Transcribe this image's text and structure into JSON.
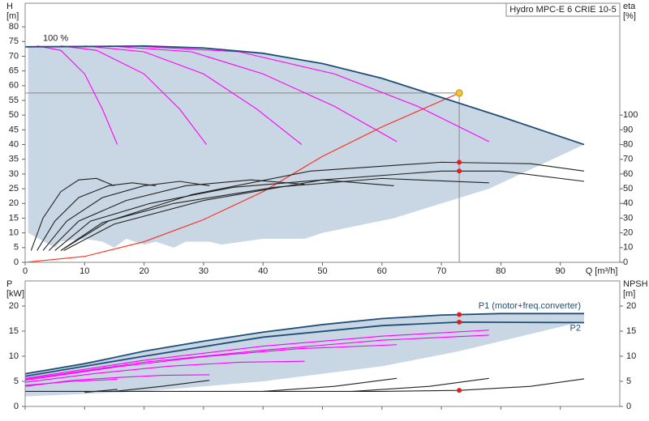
{
  "chart_data": [
    {
      "type": "line",
      "title": "Hydro MPC-E 6 CRIE 10-5",
      "xlabel": "Q [m³/h]",
      "ylabel": [
        "H",
        "[m]"
      ],
      "y2label": [
        "eta",
        "[%]"
      ],
      "xlim": [
        0,
        100
      ],
      "xticks": [
        0,
        10,
        20,
        30,
        40,
        50,
        60,
        70,
        80,
        90
      ],
      "ylim": [
        0,
        88
      ],
      "yticks": [
        0,
        5,
        10,
        15,
        20,
        25,
        30,
        35,
        40,
        45,
        50,
        55,
        60,
        65,
        70,
        75,
        80
      ],
      "y2lim": [
        0,
        176
      ],
      "y2ticks": [
        0,
        10,
        20,
        30,
        40,
        50,
        60,
        70,
        80,
        90,
        100
      ],
      "area": {
        "color": "#c9d6e3",
        "x": [
          0.5,
          5,
          6,
          10,
          13,
          15,
          17,
          20,
          22,
          25,
          27,
          31,
          33,
          40,
          47,
          50,
          62,
          78,
          94
        ],
        "upper": [
          73.2,
          73.2,
          73.3,
          73.3,
          73.4,
          73.4,
          73.5,
          73.5,
          73.4,
          73.2,
          73,
          72.7,
          72.5,
          71,
          68.7,
          67.5,
          61.5,
          51,
          40
        ],
        "lower": [
          10,
          5,
          7,
          8,
          7,
          5,
          8,
          6,
          7,
          5,
          7,
          7,
          6,
          8,
          8,
          10,
          15,
          25,
          40
        ]
      },
      "guides": {
        "x": 73,
        "y": 57.5,
        "color": "#888888"
      },
      "annotations": [
        {
          "text": "100 %",
          "x": 3,
          "y": 76
        }
      ],
      "series": [
        {
          "color": "#ff00ff",
          "x": [
            2,
            6,
            10,
            13,
            15.5
          ],
          "values": [
            73.5,
            72,
            64,
            52,
            40
          ]
        },
        {
          "color": "#ff00ff",
          "x": [
            6,
            12,
            20,
            26,
            30.5
          ],
          "values": [
            73.5,
            72,
            64,
            52,
            40
          ]
        },
        {
          "color": "#ff00ff",
          "x": [
            10,
            20,
            30,
            39,
            46.5
          ],
          "values": [
            73.5,
            71.5,
            64,
            52,
            40
          ]
        },
        {
          "color": "#ff00ff",
          "x": [
            14,
            28,
            40,
            52,
            62.5
          ],
          "values": [
            73.5,
            71.5,
            64,
            53,
            41
          ]
        },
        {
          "color": "#ff00ff",
          "x": [
            18,
            36,
            52,
            66,
            78
          ],
          "values": [
            73.5,
            71.5,
            64,
            53,
            41
          ]
        },
        {
          "color": "#ff2a1a",
          "x": [
            0,
            10,
            20,
            30,
            40,
            50,
            60,
            73
          ],
          "values": [
            0,
            2,
            7,
            14.5,
            24,
            36,
            46,
            57.5
          ]
        },
        {
          "color": "#222222",
          "axis": "y2",
          "x": [
            1,
            3,
            6,
            9,
            12,
            15
          ],
          "values": [
            8,
            30,
            48,
            56,
            57,
            52
          ]
        },
        {
          "color": "#222222",
          "axis": "y2",
          "x": [
            2,
            5,
            9,
            14,
            18,
            22
          ],
          "values": [
            8,
            28,
            44,
            52,
            54,
            52
          ]
        },
        {
          "color": "#222222",
          "axis": "y2",
          "x": [
            3,
            7,
            13,
            20,
            26,
            31
          ],
          "values": [
            8,
            28,
            44,
            52,
            55,
            52
          ]
        },
        {
          "color": "#222222",
          "axis": "y2",
          "x": [
            4,
            9,
            17,
            27,
            38,
            47
          ],
          "values": [
            8,
            28,
            42,
            52,
            56,
            53
          ]
        },
        {
          "color": "#222222",
          "axis": "y2",
          "x": [
            5,
            11,
            21,
            35,
            50,
            62
          ],
          "values": [
            8,
            28,
            40,
            51,
            56,
            52
          ]
        },
        {
          "color": "#222222",
          "axis": "y2",
          "x": [
            6,
            13,
            25,
            42,
            60,
            78
          ],
          "values": [
            8,
            27,
            40,
            51,
            57,
            54
          ]
        },
        {
          "color": "#222222",
          "axis": "y2",
          "x": [
            6.5,
            15,
            30,
            50,
            70,
            80,
            94
          ],
          "values": [
            8,
            26,
            42,
            56,
            62,
            62,
            55
          ]
        },
        {
          "color": "#222222",
          "axis": "y2",
          "x": [
            6,
            14,
            28,
            48,
            70,
            85,
            94
          ],
          "values": [
            8,
            28,
            46,
            62,
            68,
            67,
            62
          ]
        },
        {
          "color": "#1f4e79",
          "x": [
            0,
            10,
            20,
            30,
            40,
            50,
            60,
            70,
            80,
            94
          ],
          "values": [
            73.2,
            73.3,
            73.5,
            72.8,
            71,
            67.5,
            62.5,
            56,
            49.5,
            40
          ]
        }
      ],
      "points": [
        {
          "x": 73,
          "y": 57.5,
          "color": "#f5c542"
        },
        {
          "x": 73,
          "y": 68,
          "color": "#e02020",
          "axis": "y2"
        },
        {
          "x": 73,
          "y": 62,
          "color": "#e02020",
          "axis": "y2"
        }
      ]
    },
    {
      "type": "line",
      "ylabel": [
        "P",
        "[kW]"
      ],
      "y2label": [
        "NPSH",
        "[m]"
      ],
      "xlim": [
        0,
        100
      ],
      "xticks": [
        0,
        10,
        20,
        30,
        40,
        50,
        60,
        70,
        80,
        90
      ],
      "ylim": [
        0,
        25
      ],
      "yticks": [
        0,
        5,
        10,
        15,
        20
      ],
      "y2lim": [
        0,
        25
      ],
      "y2ticks": [
        0,
        5,
        10,
        15,
        20
      ],
      "area": {
        "color": "#c9d6e3",
        "x": [
          0,
          20,
          40,
          60,
          73,
          80,
          94
        ],
        "upper": [
          6.5,
          11,
          14.8,
          17.5,
          18.3,
          18.5,
          18.5
        ],
        "lower": [
          2,
          3,
          5,
          8,
          11,
          13,
          17
        ]
      },
      "series": [
        {
          "color": "#ff00ff",
          "x": [
            0,
            8,
            15.5
          ],
          "values": [
            4.2,
            5,
            5.4
          ]
        },
        {
          "color": "#ff00ff",
          "x": [
            0,
            8,
            16,
            23,
            31
          ],
          "values": [
            4,
            5.2,
            5.8,
            6.2,
            6.3
          ]
        },
        {
          "color": "#ff00ff",
          "x": [
            0,
            12,
            24,
            36,
            47
          ],
          "values": [
            4.8,
            6.6,
            8,
            8.8,
            9
          ]
        },
        {
          "color": "#ff00ff",
          "x": [
            0,
            15,
            30,
            46,
            62.5
          ],
          "values": [
            5.2,
            7.8,
            9.9,
            11.5,
            12.3
          ]
        },
        {
          "color": "#ff00ff",
          "x": [
            0,
            20,
            40,
            60,
            78
          ],
          "values": [
            5.4,
            8.8,
            11.2,
            13.2,
            14.2
          ]
        },
        {
          "color": "#ff00ff",
          "x": [
            0,
            20,
            40,
            60,
            78
          ],
          "values": [
            5.6,
            9.2,
            12,
            14,
            15.2
          ]
        },
        {
          "color": "#222222",
          "axis": "y2",
          "x": [
            0,
            20,
            40,
            60,
            73,
            85,
            94
          ],
          "values": [
            3,
            3,
            3,
            3,
            3.2,
            4,
            5.5
          ]
        },
        {
          "color": "#222222",
          "axis": "y2",
          "x": [
            10,
            15.5
          ],
          "values": [
            2.8,
            3.4
          ]
        },
        {
          "color": "#222222",
          "axis": "y2",
          "x": [
            15,
            23,
            31
          ],
          "values": [
            3,
            4,
            5.2
          ]
        },
        {
          "color": "#222222",
          "axis": "y2",
          "x": [
            40,
            52,
            62.5
          ],
          "values": [
            3,
            4,
            5.6
          ]
        },
        {
          "color": "#222222",
          "axis": "y2",
          "x": [
            55,
            68,
            78
          ],
          "values": [
            3,
            4,
            5.6
          ]
        },
        {
          "name": "P2",
          "color": "#1f4e79",
          "x": [
            0,
            20,
            40,
            60,
            73,
            94
          ],
          "values": [
            6,
            10,
            13.8,
            16.1,
            16.8,
            16.7
          ]
        },
        {
          "name": "P1 (motor+freq.converter)",
          "color": "#1f4e79",
          "x": [
            0,
            10,
            20,
            30,
            40,
            50,
            60,
            70,
            80,
            94
          ],
          "values": [
            6.5,
            8.5,
            11,
            13,
            14.8,
            16.3,
            17.5,
            18.2,
            18.5,
            18.5
          ]
        }
      ],
      "points": [
        {
          "x": 73,
          "y": 18.3,
          "color": "#e02020"
        },
        {
          "x": 73,
          "y": 16.8,
          "color": "#e02020"
        },
        {
          "x": 73,
          "y": 3.2,
          "color": "#e02020",
          "axis": "y2"
        }
      ]
    }
  ]
}
